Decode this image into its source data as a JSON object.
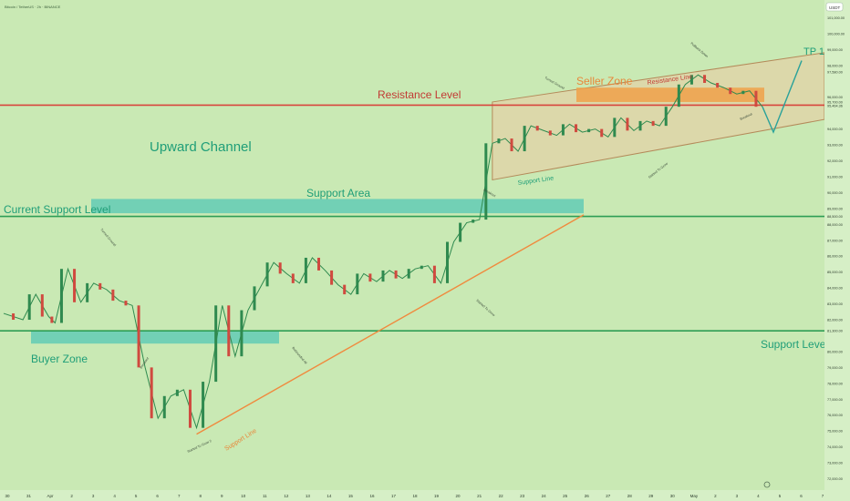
{
  "header": {
    "symbol_text": "Bitcoin / TetherUS · 2h · BINANCE",
    "currency_badge": "USDT"
  },
  "colors": {
    "background": "#c9e9b4",
    "axis_bg": "#d6efc6",
    "up_candle": "#2f8a4f",
    "down_candle": "#d04a3f",
    "resistance": "#d8443c",
    "support": "#2e9e55",
    "zone_teal": "#5cc9b5",
    "seller_zone": "#f0a14a",
    "channel_fill": "#e7cfa4",
    "support_line": "#f08a3e",
    "arrow": "#2aa29a",
    "label_green": "#1f9e78"
  },
  "chart_data": {
    "type": "candlestick",
    "title": "",
    "xlabel": "",
    "ylabel": "",
    "ylim": [
      71400,
      102000
    ],
    "x_ticks": [
      "30",
      "31",
      "Apr",
      "2",
      "3",
      "4",
      "5",
      "6",
      "7",
      "8",
      "9",
      "10",
      "11",
      "12",
      "13",
      "14",
      "15",
      "16",
      "17",
      "18",
      "19",
      "20",
      "21",
      "22",
      "23",
      "24",
      "25",
      "26",
      "27",
      "28",
      "29",
      "30",
      "May",
      "2",
      "3",
      "4",
      "5",
      "6",
      "7"
    ],
    "y_ticks": [
      73000,
      74000,
      75000,
      76000,
      77000,
      78000,
      79000,
      80000,
      81000,
      82000,
      83000,
      84000,
      85000,
      86000,
      87000,
      88000,
      89000,
      90000,
      91000,
      92000,
      93000,
      94000,
      96000,
      97000,
      98000,
      99000,
      100000,
      101000
    ],
    "path_points": [
      [
        0,
        82400
      ],
      [
        1.5,
        82000
      ],
      [
        2.5,
        83600
      ],
      [
        3.5,
        82200
      ],
      [
        4,
        81800
      ],
      [
        5,
        85200
      ],
      [
        6,
        83100
      ],
      [
        7,
        84300
      ],
      [
        8,
        83900
      ],
      [
        9,
        83200
      ],
      [
        10,
        82900
      ],
      [
        11,
        79000
      ],
      [
        12,
        75800
      ],
      [
        13,
        77200
      ],
      [
        14,
        77600
      ],
      [
        15,
        75200
      ],
      [
        16,
        78100
      ],
      [
        17,
        82900
      ],
      [
        18,
        79700
      ],
      [
        19,
        82600
      ],
      [
        20,
        84100
      ],
      [
        21,
        85600
      ],
      [
        22,
        84900
      ],
      [
        23,
        84300
      ],
      [
        24,
        85900
      ],
      [
        25,
        85100
      ],
      [
        26,
        84200
      ],
      [
        27,
        83600
      ],
      [
        28,
        84900
      ],
      [
        29,
        84400
      ],
      [
        30,
        85100
      ],
      [
        31,
        84600
      ],
      [
        32,
        85200
      ],
      [
        33,
        85400
      ],
      [
        34,
        84300
      ],
      [
        35,
        86900
      ],
      [
        36,
        88100
      ],
      [
        37,
        88300
      ],
      [
        38,
        93100
      ],
      [
        39,
        93400
      ],
      [
        40,
        92600
      ],
      [
        41,
        94200
      ],
      [
        42,
        93900
      ],
      [
        43,
        93600
      ],
      [
        44,
        94300
      ],
      [
        45,
        93800
      ],
      [
        46,
        94000
      ],
      [
        47,
        93500
      ],
      [
        48,
        94700
      ],
      [
        49,
        93900
      ],
      [
        50,
        94500
      ],
      [
        51,
        94200
      ],
      [
        52,
        95400
      ],
      [
        53,
        96800
      ],
      [
        54,
        97400
      ],
      [
        55,
        96900
      ],
      [
        56,
        96600
      ],
      [
        57,
        96200
      ],
      [
        58,
        96400
      ],
      [
        59,
        95400
      ]
    ],
    "horizontal_levels": [
      {
        "label": "Resistance Level",
        "value": 95500
      },
      {
        "label": "Current Support Level",
        "value": 88500
      },
      {
        "label": "Support Level",
        "value": 81300
      }
    ],
    "zones": [
      {
        "label": "Seller Zone",
        "from": 95700,
        "to": 96600
      },
      {
        "label": "Support Area",
        "from": 88700,
        "to": 89600
      },
      {
        "label": "Buyer Zone",
        "from": 80500,
        "to": 81300
      }
    ],
    "channel_label": "Upward Channel",
    "target_label": "TP 1",
    "channel_line_labels": [
      "Resistance Line",
      "Support Line"
    ],
    "support_line_label": "Support Line",
    "annotations": [
      "Turned Ground",
      "Breakout",
      "Rebounded All",
      "Started To Grow 2",
      "Started To Grow",
      "Breakout",
      "Turned Ground",
      "Started To Grow",
      "Pullback Down",
      "Breakout"
    ],
    "price_tags": [
      "101,000.00",
      "100,000.00",
      "99,000.00",
      "98,000.00",
      "97,580.00",
      "96,000.00",
      "95,700.00",
      "95,464.36",
      "94,000.00",
      "93,000.00",
      "92,000.00",
      "91,000.00",
      "90,000.00",
      "89,000.00",
      "88,500.00",
      "88,000.00",
      "87,000.00",
      "86,000.00",
      "85,000.00",
      "84,000.00",
      "83,000.00",
      "82,000.00",
      "81,300.00",
      "80,000.00",
      "79,000.00",
      "78,000.00",
      "77,000.00",
      "76,000.00",
      "75,000.00",
      "74,000.00",
      "73,000.00",
      "72,000.00"
    ]
  }
}
